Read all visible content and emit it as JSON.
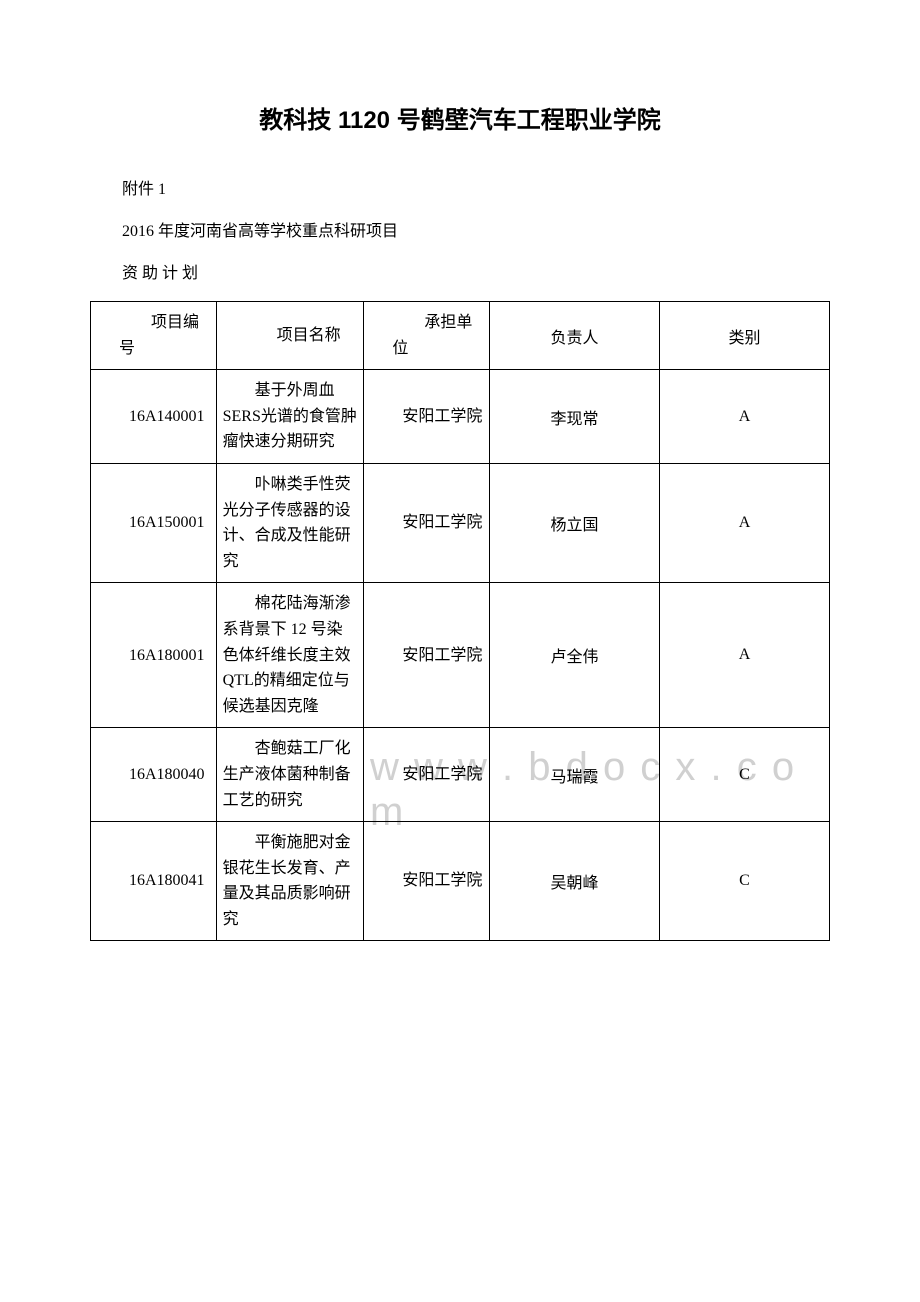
{
  "title": "教科技 1120 号鹤壁汽车工程职业学院",
  "attachment_label": "附件 1",
  "report_title": "2016 年度河南省高等学校重点科研项目",
  "plan_label": "资 助 计 划",
  "watermark_text": "w w w . b d o c x . c o m",
  "table": {
    "headers": {
      "project_id": "项目编号",
      "project_name": "项目名称",
      "org": "承担单位",
      "person": "负责人",
      "type": "类别"
    },
    "rows": [
      {
        "project_id": "16A140001",
        "project_name": "基于外周血 SERS光谱的食管肿瘤快速分期研究",
        "org": "安阳工学院",
        "person": "李现常",
        "type": "A"
      },
      {
        "project_id": "16A150001",
        "project_name": "卟啉类手性荧光分子传感器的设计、合成及性能研究",
        "org": "安阳工学院",
        "person": "杨立国",
        "type": "A"
      },
      {
        "project_id": "16A180001",
        "project_name": "棉花陆海渐渗系背景下 12 号染色体纤维长度主效 QTL的精细定位与候选基因克隆",
        "org": "安阳工学院",
        "person": "卢全伟",
        "type": "A"
      },
      {
        "project_id": "16A180040",
        "project_name": "杏鲍菇工厂化生产液体菌种制备工艺的研究",
        "org": "安阳工学院",
        "person": "马瑞霞",
        "type": "C"
      },
      {
        "project_id": "16A180041",
        "project_name": "平衡施肥对金银花生长发育、产量及其品质影响研究",
        "org": "安阳工学院",
        "person": "吴朝峰",
        "type": "C"
      }
    ]
  }
}
